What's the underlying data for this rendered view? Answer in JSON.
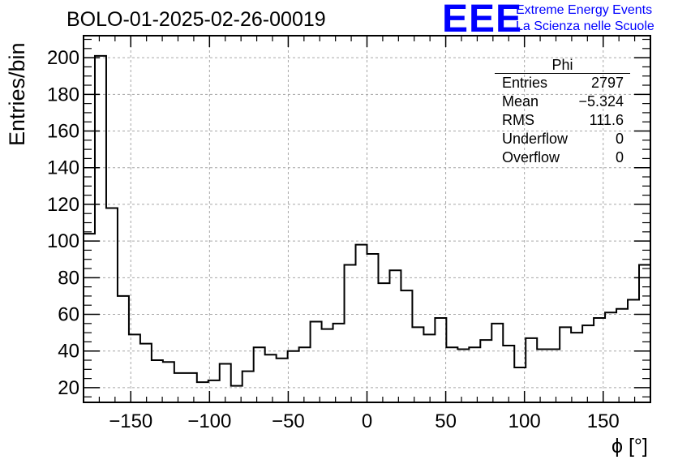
{
  "header": {
    "title": "BOLO-01-2025-02-26-00019",
    "brand_logo": "EEE",
    "brand_line1": "Extreme Energy Events",
    "brand_line2": "La Scienza nelle Scuole"
  },
  "stats_box": {
    "title": "Phi",
    "rows": [
      {
        "label": "Entries",
        "value": "2797"
      },
      {
        "label": "Mean",
        "value": "−5.324"
      },
      {
        "label": "RMS",
        "value": "111.6"
      },
      {
        "label": "Underflow",
        "value": "0"
      },
      {
        "label": "Overflow",
        "value": "0"
      }
    ]
  },
  "colors": {
    "line": "#000000",
    "grid": "#a6a6a6",
    "brand": "#0000ff"
  },
  "chart_data": {
    "type": "bar",
    "histogram": true,
    "title": "BOLO-01-2025-02-26-00019",
    "xlabel": "ϕ [°]",
    "ylabel": "Entries/bin",
    "xlim": [
      -180,
      180
    ],
    "ylim": [
      12,
      212
    ],
    "grid": true,
    "bin_width": 7.2,
    "bin_edges_start": -180,
    "x_ticks": [
      -150,
      -100,
      -50,
      0,
      50,
      100,
      150
    ],
    "x_tick_labels": [
      "−150",
      "−100",
      "−50",
      "0",
      "50",
      "100",
      "150"
    ],
    "y_ticks": [
      20,
      40,
      60,
      80,
      100,
      120,
      140,
      160,
      180,
      200
    ],
    "y_tick_labels": [
      "20",
      "40",
      "60",
      "80",
      "100",
      "120",
      "140",
      "160",
      "180",
      "200"
    ],
    "values": [
      104,
      201,
      118,
      70,
      49,
      44,
      35,
      34,
      28,
      28,
      23,
      24,
      33,
      21,
      29,
      42,
      38,
      36,
      40,
      42,
      56,
      52,
      55,
      87,
      98,
      93,
      77,
      84,
      73,
      53,
      49,
      58,
      42,
      41,
      42,
      46,
      55,
      43,
      31,
      47,
      41,
      41,
      53,
      50,
      54,
      58,
      61,
      63,
      68,
      87
    ]
  }
}
